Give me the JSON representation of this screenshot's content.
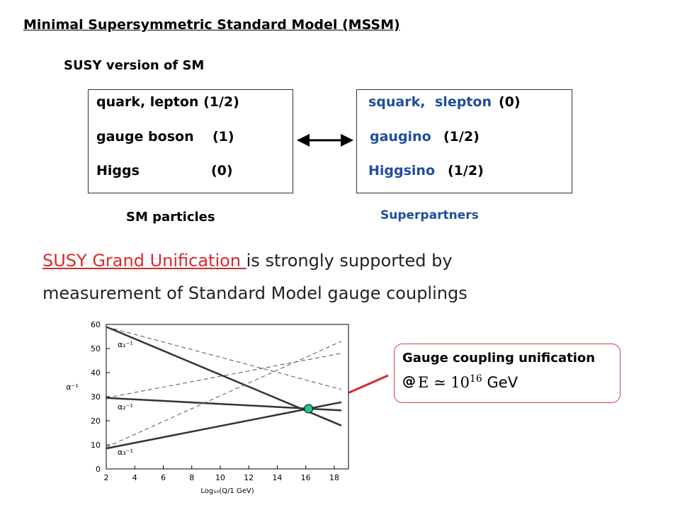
{
  "header": {
    "title": "Minimal Supersymmetric Standard Model (MSSM)",
    "subtitle": "SUSY version of SM"
  },
  "sm_box": {
    "rows": [
      [
        "quark, lepton (1/2)"
      ],
      [
        "gauge boson",
        "(1)"
      ],
      [
        "Higgs",
        "(0)"
      ]
    ],
    "caption": "SM particles"
  },
  "partner_box": {
    "rows": [
      [
        "squark,",
        "slepton",
        "(0)"
      ],
      [
        "gaugino",
        "(1/2)"
      ],
      [
        "Higgsino",
        "(1/2)"
      ]
    ],
    "caption": "Superpartners"
  },
  "paragraph": {
    "highlight": "SUSY Grand Unification ",
    "line1": "is strongly supported by",
    "line2": "measurement of Standard Model gauge couplings"
  },
  "callout": {
    "title": "Gauge coupling unification",
    "at": "@",
    "formula": "E ≃ 10",
    "exponent": "16",
    "unit": "GeV"
  },
  "chart_data": {
    "type": "line",
    "ylabel": "α⁻¹",
    "xlabel": "Log₁₀(Q/1 GeV)",
    "x": [
      2,
      18.5
    ],
    "series": [
      {
        "color": "#333333",
        "style": "solid",
        "values": [
          59,
          18
        ]
      },
      {
        "color": "#333333",
        "style": "solid",
        "values": [
          29.5,
          24.3
        ]
      },
      {
        "color": "#333333",
        "style": "solid",
        "values": [
          8.5,
          27.7
        ]
      },
      {
        "color": "#555555",
        "style": "dashed",
        "values": [
          59,
          33
        ]
      },
      {
        "color": "#555555",
        "style": "dashed",
        "values": [
          29.5,
          48
        ]
      },
      {
        "color": "#555555",
        "style": "dashed",
        "values": [
          9,
          53
        ]
      }
    ],
    "annotations": [
      "α₁⁻¹",
      "α₂⁻¹",
      "α₃⁻¹"
    ],
    "highlight": {
      "x": 16.2,
      "y": 25,
      "color": "#1fc98a"
    },
    "xlim": [
      2,
      19
    ],
    "ylim": [
      0,
      60
    ],
    "xticks": [
      2,
      4,
      6,
      8,
      10,
      12,
      14,
      16,
      18
    ],
    "yticks": [
      0,
      10,
      20,
      30,
      40,
      50,
      60
    ]
  }
}
